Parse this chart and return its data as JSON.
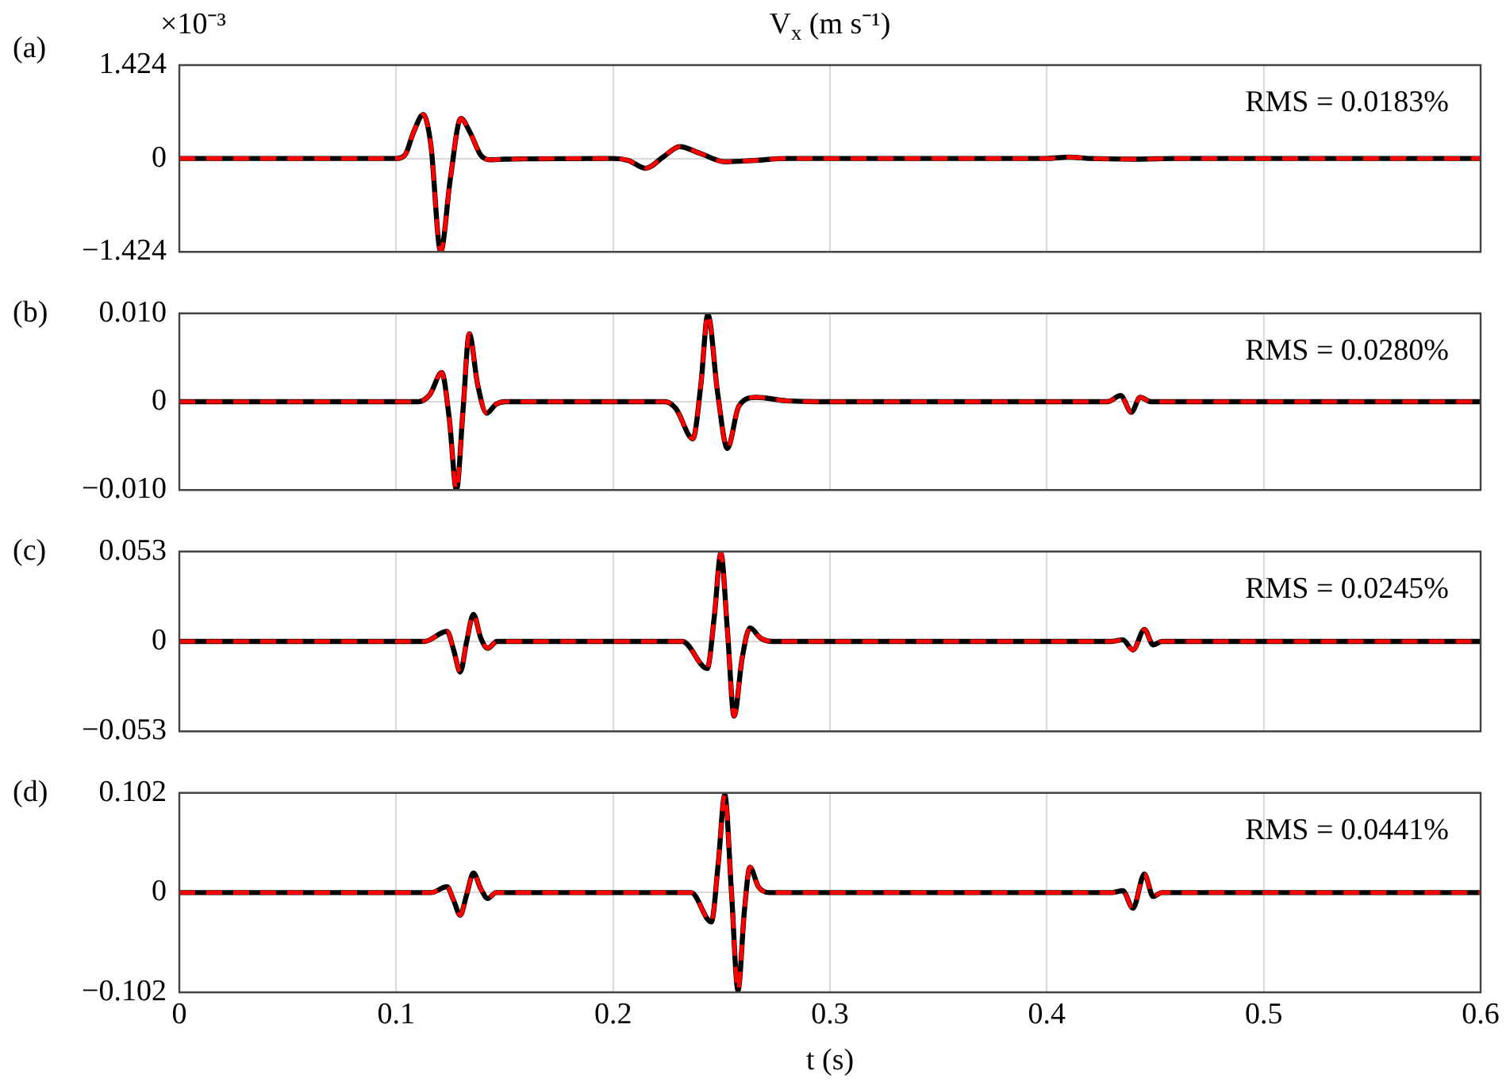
{
  "chart_data": [
    {
      "type": "line",
      "title": "(a)",
      "subtitle": "V$_{x}$ (m s⁻¹)",
      "ylabel": "×10⁻³",
      "annotations": [
        "RMS = 0.0183%"
      ],
      "marker": "none",
      "grid": true,
      "tick_labels": "y",
      "x": [
        0,
        0.1,
        0.104,
        0.108,
        0.1125,
        0.116,
        0.1205,
        0.125,
        0.1298,
        0.134,
        0.139,
        0.144,
        0.15,
        0.2,
        0.207,
        0.215,
        0.223,
        0.2307,
        0.24,
        0.2515,
        0.265,
        0.28,
        0.4,
        0.41,
        0.42,
        0.44,
        0.46,
        0.6
      ],
      "series": [
        {
          "color": "#000000",
          "line_style": "solid",
          "values": [
            0,
            0,
            0.05,
            0.4,
            0.67,
            0.2,
            -1.42,
            -0.3,
            0.61,
            0.4,
            0.05,
            -0.02,
            -0.01,
            0,
            -0.03,
            -0.15,
            0.02,
            0.18,
            0.08,
            -0.05,
            -0.03,
            0,
            0,
            0.02,
            0,
            -0.01,
            0,
            0
          ]
        },
        {
          "color": "#ff0000",
          "line_style": "dashed",
          "values": [
            0,
            0,
            0.05,
            0.4,
            0.67,
            0.2,
            -1.42,
            -0.3,
            0.61,
            0.4,
            0.05,
            -0.02,
            -0.01,
            0,
            -0.03,
            -0.15,
            0.02,
            0.18,
            0.08,
            -0.05,
            -0.03,
            0,
            0,
            0.02,
            0,
            -0.01,
            0,
            0
          ]
        }
      ],
      "xlim": [
        0,
        0.6
      ],
      "xticks": [
        0,
        0.1,
        0.2,
        0.3,
        0.4,
        0.5,
        0.6
      ],
      "ylim": [
        -1.424,
        1.424
      ],
      "yticks": [
        {
          "value": -1.424,
          "label": "−1.424"
        },
        0,
        1.424
      ]
    },
    {
      "type": "line",
      "title": "(b)",
      "annotations": [
        "RMS = 0.0280%"
      ],
      "marker": "none",
      "grid": true,
      "tick_labels": "y",
      "x": [
        0,
        0.11,
        0.1155,
        0.121,
        0.1245,
        0.1278,
        0.1308,
        0.1337,
        0.1375,
        0.1417,
        0.146,
        0.15,
        0.224,
        0.229,
        0.2368,
        0.2405,
        0.2437,
        0.2482,
        0.2527,
        0.258,
        0.266,
        0.28,
        0.3,
        0.428,
        0.434,
        0.439,
        0.443,
        0.448,
        0.6
      ],
      "series": [
        {
          "color": "#000000",
          "line_style": "solid",
          "values": [
            0,
            0,
            0.0008,
            0.0033,
            -0.002,
            -0.01,
            -0.001,
            0.0077,
            0.002,
            -0.0013,
            -0.0003,
            0,
            0,
            -0.0008,
            -0.0042,
            0.002,
            0.0099,
            0.001,
            -0.0053,
            -0.0005,
            0.0005,
            0.0001,
            0,
            0,
            0.0007,
            -0.0012,
            0.0005,
            0,
            0
          ]
        },
        {
          "color": "#ff0000",
          "line_style": "dashed",
          "values": [
            0,
            0,
            0.0008,
            0.0033,
            -0.002,
            -0.01,
            -0.001,
            0.0077,
            0.002,
            -0.0013,
            -0.0003,
            0,
            0,
            -0.0008,
            -0.0042,
            0.002,
            0.0099,
            0.001,
            -0.0053,
            -0.0005,
            0.0005,
            0.0001,
            0,
            0,
            0.0007,
            -0.0012,
            0.0005,
            0,
            0
          ]
        }
      ],
      "xlim": [
        0,
        0.6
      ],
      "xticks": [
        0,
        0.1,
        0.2,
        0.3,
        0.4,
        0.5,
        0.6
      ],
      "ylim": [
        -0.01,
        0.01
      ],
      "yticks": [
        {
          "value": -0.01,
          "label": "−0.010"
        },
        0,
        {
          "value": 0.01,
          "label": "0.010"
        }
      ]
    },
    {
      "type": "line",
      "title": "(c)",
      "annotations": [
        "RMS = 0.0245%"
      ],
      "marker": "none",
      "grid": true,
      "tick_labels": "y",
      "x": [
        0,
        0.113,
        0.1234,
        0.1265,
        0.1295,
        0.1325,
        0.1356,
        0.139,
        0.1422,
        0.1465,
        0.232,
        0.2434,
        0.2467,
        0.2497,
        0.2528,
        0.2558,
        0.2595,
        0.2631,
        0.268,
        0.2734,
        0.43,
        0.435,
        0.4397,
        0.445,
        0.449,
        0.453,
        0.6
      ],
      "series": [
        {
          "color": "#000000",
          "line_style": "solid",
          "values": [
            0,
            0,
            0.006,
            -0.005,
            -0.018,
            0,
            0.016,
            0.002,
            -0.004,
            0,
            0,
            -0.016,
            0.015,
            0.052,
            0.005,
            -0.044,
            -0.01,
            0.008,
            0.002,
            0,
            0,
            0.001,
            -0.005,
            0.007,
            -0.002,
            0,
            0
          ]
        },
        {
          "color": "#ff0000",
          "line_style": "dashed",
          "values": [
            0,
            0,
            0.006,
            -0.005,
            -0.018,
            0,
            0.016,
            0.002,
            -0.004,
            0,
            0,
            -0.016,
            0.015,
            0.052,
            0.005,
            -0.044,
            -0.01,
            0.008,
            0.002,
            0,
            0,
            0.001,
            -0.005,
            0.007,
            -0.002,
            0,
            0
          ]
        }
      ],
      "xlim": [
        0,
        0.6
      ],
      "xticks": [
        0,
        0.1,
        0.2,
        0.3,
        0.4,
        0.5,
        0.6
      ],
      "ylim": [
        -0.053,
        0.053
      ],
      "yticks": [
        {
          "value": -0.053,
          "label": "−0.053"
        },
        0,
        0.053
      ]
    },
    {
      "type": "line",
      "title": "(d)",
      "xlabel": "t (s)",
      "annotations": [
        "RMS = 0.0441%"
      ],
      "marker": "none",
      "grid": true,
      "x": [
        0,
        0.116,
        0.1234,
        0.1265,
        0.1295,
        0.1325,
        0.1356,
        0.139,
        0.1422,
        0.146,
        0.236,
        0.2453,
        0.2485,
        0.2515,
        0.2546,
        0.2576,
        0.2605,
        0.2631,
        0.267,
        0.2722,
        0.43,
        0.435,
        0.4397,
        0.445,
        0.449,
        0.453,
        0.6
      ],
      "series": [
        {
          "color": "#000000",
          "line_style": "solid",
          "values": [
            0,
            0,
            0.006,
            -0.008,
            -0.023,
            -0.002,
            0.02,
            0.004,
            -0.006,
            0,
            0,
            -0.03,
            0.03,
            0.1,
            0,
            -0.1,
            -0.02,
            0.026,
            0.006,
            0,
            0,
            0.002,
            -0.016,
            0.019,
            -0.004,
            0,
            0
          ]
        },
        {
          "color": "#ff0000",
          "line_style": "dashed",
          "values": [
            0,
            0,
            0.006,
            -0.008,
            -0.023,
            -0.002,
            0.02,
            0.004,
            -0.006,
            0,
            0,
            -0.03,
            0.03,
            0.1,
            0,
            -0.1,
            -0.02,
            0.026,
            0.006,
            0,
            0,
            0.002,
            -0.016,
            0.019,
            -0.004,
            0,
            0
          ]
        }
      ],
      "xlim": [
        0,
        0.6
      ],
      "xticks": [
        0,
        0.1,
        0.2,
        0.3,
        0.4,
        0.5,
        0.6
      ],
      "ylim": [
        -0.102,
        0.102
      ],
      "yticks": [
        {
          "value": -0.102,
          "label": "−0.102"
        },
        0,
        {
          "value": 0.102,
          "label": "0.102"
        }
      ]
    }
  ]
}
